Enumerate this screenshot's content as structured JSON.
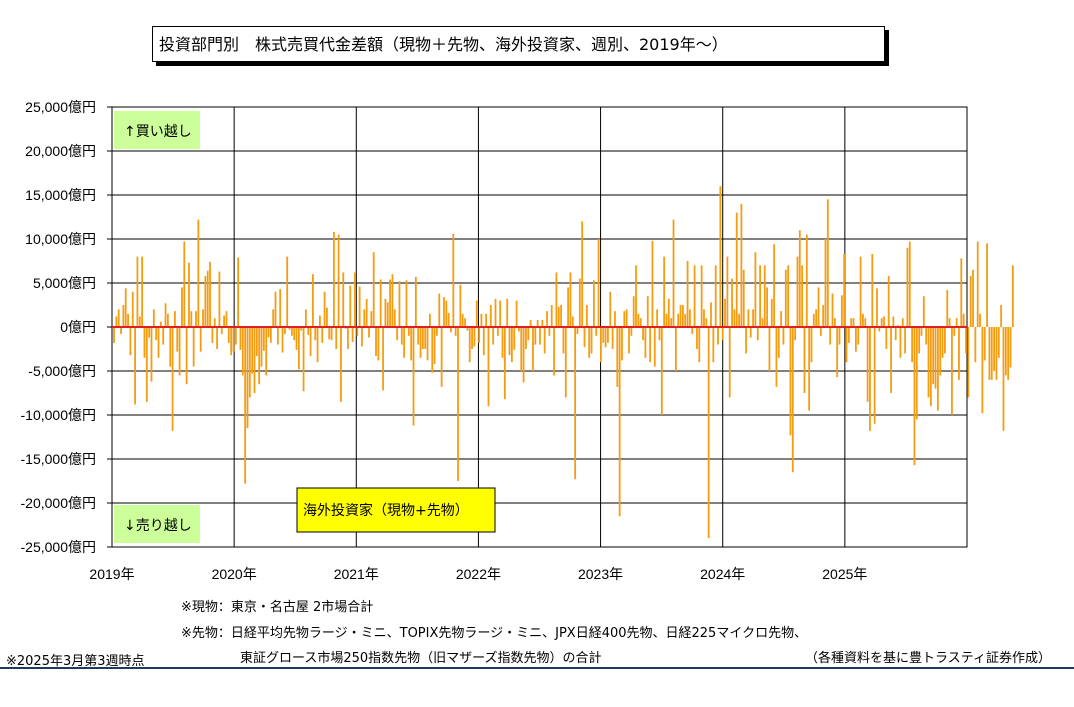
{
  "title": "投資部門別　株式売買代金差額（現物＋先物、海外投資家、週別、2019年～）",
  "notes": {
    "spot": "※現物：東京・名古屋 2市場合計",
    "futures_line1": "※先物：日経平均先物ラージ・ミニ、TOPIX先物ラージ・ミニ、JPX日経400先物、日経225マイクロ先物、",
    "futures_line2": "東証グロース市場250指数先物（旧マザーズ指数先物）の合計",
    "asof": "※2025年3月第3週時点",
    "source": "（各種資料を基に豊トラスティ証券作成）"
  },
  "colors": {
    "bar": "#f59c11",
    "zero_line": "#e02020",
    "label_bg": "#ccff99",
    "legend_bg": "#ffff00"
  },
  "chart_data": {
    "type": "bar",
    "title": "投資部門別　株式売買代金差額（現物＋先物、海外投資家、週別、2019年～）",
    "ylim": [
      -25000,
      25000
    ],
    "yticks": [
      25000,
      20000,
      15000,
      10000,
      5000,
      0,
      -5000,
      -10000,
      -15000,
      -20000,
      -25000
    ],
    "ytick_labels": [
      "25,000億円",
      "20,000億円",
      "15,000億円",
      "10,000億円",
      "5,000億円",
      "0億円",
      "-5,000億円",
      "-10,000億円",
      "-15,000億円",
      "-20,000億円",
      "-25,000億円"
    ],
    "xtick_labels": [
      "2019年",
      "2020年",
      "2021年",
      "2022年",
      "2023年",
      "2024年",
      "2025年"
    ],
    "xlim_years": [
      2019,
      2026
    ],
    "grid": true,
    "annotation_up": "↑買い越し",
    "annotation_down": "↓売り越し",
    "series": [
      {
        "name": "海外投資家（現物+先物）",
        "start": "2019-01-07",
        "interval_days": 7,
        "values": [
          -1800,
          1200,
          2000,
          -800,
          2500,
          4400,
          1500,
          -3200,
          4000,
          -8800,
          8000,
          1200,
          8000,
          -3500,
          -8500,
          -1200,
          -6200,
          2000,
          -1500,
          -3500,
          600,
          -2000,
          2700,
          1500,
          -4500,
          -11800,
          1800,
          -2800,
          -5500,
          4500,
          9700,
          -6500,
          7300,
          1800,
          -4500,
          1800,
          12200,
          -2800,
          2000,
          5800,
          6400,
          7400,
          -1800,
          1000,
          -2500,
          6300,
          -800,
          1300,
          1800,
          -1800,
          -3200,
          -2800,
          -2000,
          7900,
          -2600,
          -5500,
          -17800,
          -11500,
          -8000,
          -5300,
          -7500,
          -3300,
          -6500,
          -4500,
          -2700,
          -5500,
          -1200,
          -1800,
          2000,
          4000,
          -2000,
          4300,
          -2900,
          -800,
          8000,
          -300,
          -1000,
          -1500,
          -2600,
          -4800,
          -400,
          -7300,
          2000,
          -900,
          -3300,
          6000,
          -1500,
          -4000,
          1300,
          -1800,
          4000,
          2200,
          -1400,
          -1500,
          10800,
          -2500,
          10500,
          -8500,
          6200,
          -200,
          -2500,
          4700,
          -1700,
          6200,
          -1000,
          4600,
          -2200,
          2000,
          3200,
          -1200,
          1800,
          8500,
          -3300,
          -3800,
          5400,
          -7200,
          3200,
          2800,
          5400,
          6000,
          2000,
          -1500,
          5200,
          -2000,
          -3500,
          5300,
          -1000,
          -3800,
          -11200,
          5700,
          -2000,
          -3500,
          -2500,
          -2500,
          -3800,
          1500,
          -5200,
          -4200,
          -1000,
          3800,
          -6800,
          3400,
          3000,
          1600,
          -600,
          10600,
          -1000,
          -17500,
          4800,
          1500,
          1000,
          -400,
          -4000,
          -2500,
          -2200,
          3000,
          -1800,
          1500,
          -3200,
          1500,
          -9000,
          2500,
          -2000,
          3200,
          -1000,
          3000,
          -3500,
          -8200,
          3200,
          -3200,
          -4000,
          -2600,
          3000,
          -500,
          -5000,
          -6300,
          -2500,
          -1500,
          800,
          -5000,
          -2000,
          800,
          -2000,
          800,
          -3000,
          1800,
          -1000,
          2500,
          -5500,
          6200,
          2300,
          2500,
          -3000,
          -8000,
          4500,
          6200,
          1200,
          -17300,
          -800,
          5500,
          12000,
          -2300,
          2500,
          -3500,
          -3000,
          5300,
          -1000,
          10000,
          -4000,
          -1800,
          -2300,
          -1800,
          4000,
          -2500,
          1800,
          -6800,
          -21500,
          -3800,
          1800,
          2000,
          -3000,
          -1000,
          3500,
          7000,
          1500,
          1000,
          -1500,
          -3500,
          3500,
          -4000,
          9800,
          -4500,
          2000,
          -1500,
          -10000,
          8000,
          1500,
          3200,
          1000,
          12200,
          -5000,
          1500,
          2500,
          2500,
          1500,
          7500,
          2000,
          -800,
          7000,
          -2500,
          -4000,
          7000,
          2000,
          1000,
          -24000,
          2800,
          -4000,
          7000,
          -2000,
          16000,
          -1500,
          3200,
          8000,
          -8000,
          5500,
          2000,
          13000,
          1500,
          14000,
          6500,
          -3000,
          2000,
          -1200,
          2000,
          8500,
          -1500,
          7000,
          1000,
          7000,
          4500,
          -5000,
          3200,
          9400,
          -6800,
          -3500,
          1800,
          -2000,
          6500,
          7000,
          -12300,
          -16500,
          -1500,
          8000,
          11000,
          7000,
          -7500,
          10500,
          -9500,
          -4000,
          1500,
          2000,
          4500,
          -1000,
          2500,
          10000,
          14500,
          -2000,
          3800,
          1000,
          -5700,
          -2000,
          3600,
          8300,
          -4000,
          -1800,
          1000,
          1000,
          -2800,
          -2000,
          8000,
          1500,
          1000,
          -8500,
          -11800,
          8300,
          -11000,
          4400,
          -500,
          1000,
          1200,
          -2500,
          5800,
          -7500,
          1200,
          -1500,
          200,
          -3500,
          1000,
          -3000,
          9000,
          9700,
          -4000,
          -15700,
          -10500,
          -3000,
          -1000,
          3500,
          -2000,
          -8000,
          -9000,
          -6500,
          -7000,
          -9500,
          -5500,
          -3500,
          -3000,
          4200,
          1000,
          -10000,
          -1000,
          1000,
          -6000,
          7800,
          1500,
          -3000,
          -8000,
          5800,
          6500,
          -4000,
          9700,
          1500,
          -9800,
          -3800,
          9500,
          -6000,
          -6000,
          -5000,
          -6000,
          -3500,
          2500,
          -11800,
          -5500,
          -6000,
          -4600,
          7000
        ]
      }
    ]
  },
  "legend_label": "海外投資家（現物+先物）"
}
